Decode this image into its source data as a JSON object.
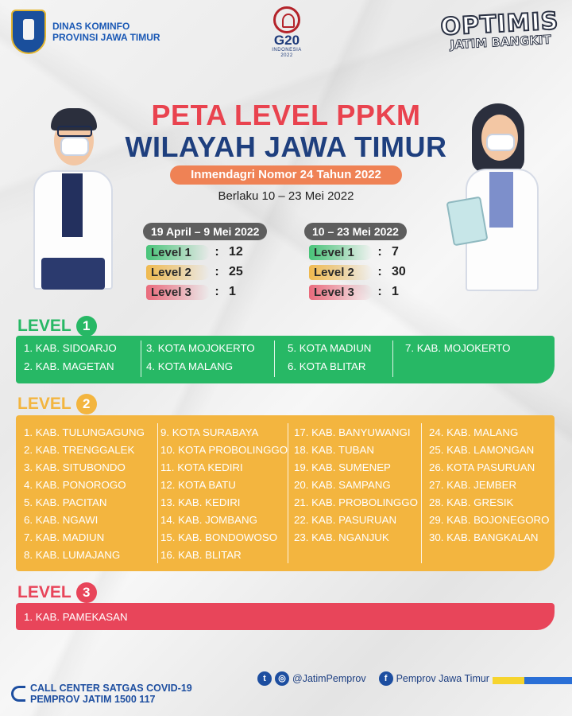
{
  "header": {
    "org_line1": "DINAS KOMINFO",
    "org_line2": "PROVINSI JAWA TIMUR",
    "g20_main": "G20",
    "g20_sub": "INDONESIA",
    "g20_year": "2022",
    "slogan_main": "OPTIMIS",
    "slogan_sub": "JATIM BANGKIT"
  },
  "title": {
    "line1": "PETA LEVEL PPKM",
    "line2": "WILAYAH JAWA TIMUR",
    "regulation": "Inmendagri Nomor 24 Tahun 2022",
    "validity": "Berlaku 10 – 23 Mei 2022"
  },
  "comparison": {
    "previous": {
      "period": "19 April – 9 Mei 2022",
      "rows": [
        {
          "label": "Level 1",
          "colon": ":",
          "count": "12"
        },
        {
          "label": "Level 2",
          "colon": ":",
          "count": "25"
        },
        {
          "label": "Level 3",
          "colon": ":",
          "count": "1"
        }
      ]
    },
    "current": {
      "period": "10 – 23 Mei 2022",
      "rows": [
        {
          "label": "Level 1",
          "colon": ":",
          "count": "7"
        },
        {
          "label": "Level 2",
          "colon": ":",
          "count": "30"
        },
        {
          "label": "Level 3",
          "colon": ":",
          "count": "1"
        }
      ]
    }
  },
  "level1": {
    "label": "LEVEL",
    "number": "1",
    "color": "#27b865",
    "items": [
      "1.  KAB. SIDOARJO",
      "2.  KAB. MAGETAN",
      "3.  KOTA MOJOKERTO",
      "4.  KOTA MALANG",
      "5.  KOTA MADIUN",
      "6.  KOTA BLITAR",
      "7.  KAB. MOJOKERTO"
    ]
  },
  "level2": {
    "label": "LEVEL",
    "number": "2",
    "color": "#f3b53f",
    "items": [
      "1.  KAB. TULUNGAGUNG",
      "2.  KAB. TRENGGALEK",
      "3.  KAB. SITUBONDO",
      "4.  KAB. PONOROGO",
      "5.  KAB. PACITAN",
      "6.  KAB. NGAWI",
      "7.  KAB. MADIUN",
      "8.  KAB. LUMAJANG",
      "9.  KOTA SURABAYA",
      "10. KOTA PROBOLINGGO",
      "11. KOTA KEDIRI",
      "12. KOTA BATU",
      "13. KAB. KEDIRI",
      "14. KAB. JOMBANG",
      "15. KAB. BONDOWOSO",
      "16. KAB. BLITAR",
      "17. KAB. BANYUWANGI",
      "18. KAB. TUBAN",
      "19. KAB. SUMENEP",
      "20. KAB. SAMPANG",
      "21. KAB. PROBOLINGGO",
      "22. KAB. PASURUAN",
      "23. KAB. NGANJUK",
      "24. KAB. MALANG",
      "25. KAB. LAMONGAN",
      "26. KOTA PASURUAN",
      "27. KAB. JEMBER",
      "28. KAB. GRESIK",
      "29. KAB. BOJONEGORO",
      "30. KAB. BANGKALAN"
    ]
  },
  "level3": {
    "label": "LEVEL",
    "number": "3",
    "color": "#e8455a",
    "items": [
      "1.  KAB. PAMEKASAN"
    ]
  },
  "footer": {
    "call_line1": "CALL CENTER SATGAS COVID-19",
    "call_line2": "PEMPROV JATIM 1500 117",
    "twitter_icon": "twitter-icon",
    "instagram_icon": "instagram-icon",
    "handle": "@JatimPemprov",
    "facebook_icon": "facebook-icon",
    "facebook_name": "Pemprov Jawa Timur"
  }
}
